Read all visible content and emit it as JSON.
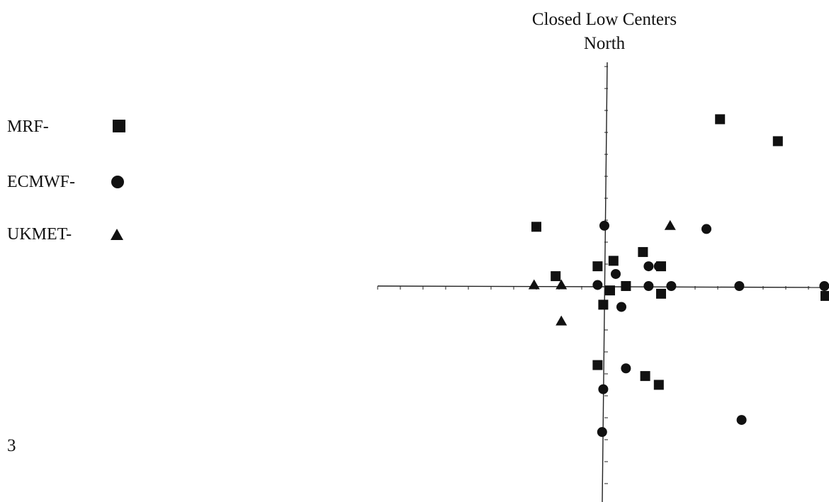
{
  "chart_data": {
    "type": "scatter",
    "title": "Closed Low Centers",
    "subtitle": "North",
    "xlabel": "",
    "ylabel": "",
    "xlim": [
      -20,
      20
    ],
    "ylim": [
      -20,
      20
    ],
    "grid": false,
    "legend_placement": "left",
    "series": [
      {
        "name": "MRF-",
        "marker": "square",
        "points": [
          [
            10.2,
            15.2
          ],
          [
            15.3,
            13.2
          ],
          [
            -6.0,
            5.4
          ],
          [
            3.4,
            3.1
          ],
          [
            0.8,
            2.3
          ],
          [
            -0.6,
            1.8
          ],
          [
            5.0,
            1.8
          ],
          [
            -4.3,
            0.9
          ],
          [
            0.5,
            -0.4
          ],
          [
            1.9,
            0.0
          ],
          [
            5.0,
            -0.7
          ],
          [
            -0.1,
            -1.7
          ],
          [
            -0.6,
            -7.2
          ],
          [
            3.6,
            -8.2
          ],
          [
            4.8,
            -9.0
          ],
          [
            19.5,
            -0.9
          ]
        ]
      },
      {
        "name": "ECMWF-",
        "marker": "circle",
        "points": [
          [
            0.0,
            5.5
          ],
          [
            9.0,
            5.2
          ],
          [
            1.0,
            1.1
          ],
          [
            3.9,
            1.8
          ],
          [
            4.8,
            1.8
          ],
          [
            -0.6,
            0.1
          ],
          [
            3.9,
            0.0
          ],
          [
            5.9,
            0.0
          ],
          [
            11.9,
            0.0
          ],
          [
            19.4,
            0.0
          ],
          [
            1.5,
            -1.9
          ],
          [
            1.9,
            -7.5
          ],
          [
            -0.1,
            -9.4
          ],
          [
            12.1,
            -12.2
          ],
          [
            -0.2,
            -13.3
          ]
        ]
      },
      {
        "name": "UKMET-",
        "marker": "triangle",
        "points": [
          [
            5.8,
            5.5
          ],
          [
            -6.2,
            0.1
          ],
          [
            -3.8,
            0.1
          ],
          [
            -3.8,
            -3.2
          ]
        ]
      }
    ]
  },
  "legend": [
    {
      "label": "MRF-",
      "marker": "square"
    },
    {
      "label": "ECMWF-",
      "marker": "circle"
    },
    {
      "label": "UKMET-",
      "marker": "triangle"
    }
  ],
  "page_number": "3",
  "colors": {
    "ink": "#111111",
    "axis": "#222222"
  }
}
